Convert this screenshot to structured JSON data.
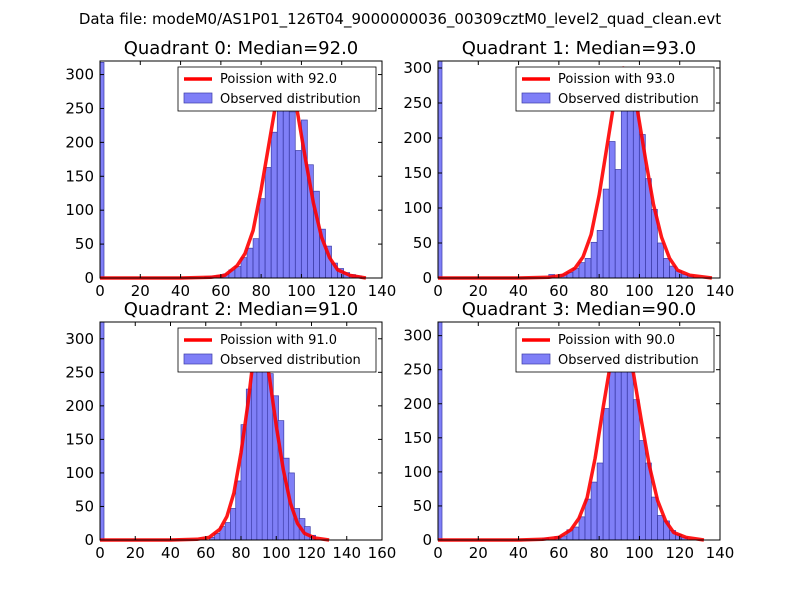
{
  "suptitle": "Data file: modeM0/AS1P01_126T04_9000000036_00309cztM0_level2_quad_clean.evt",
  "colors": {
    "bar_fill": "#7f7ff7",
    "bar_edge": "#3c3ca8",
    "curve": "#ff0000",
    "legend_edge": "#000000"
  },
  "chart_data": [
    {
      "type": "bar",
      "title": "Quadrant 0: Median=92.0",
      "median": 92.0,
      "legend": {
        "placement": "top-right",
        "curve_label": "Poission with 92.0",
        "bar_label": "Observed distribution"
      },
      "xlim": [
        0,
        140
      ],
      "ylim": [
        0,
        320
      ],
      "xticks": [
        0,
        20,
        40,
        60,
        80,
        100,
        120,
        140
      ],
      "yticks": [
        0,
        50,
        100,
        150,
        200,
        250,
        300
      ],
      "spike": {
        "x": 0,
        "value": 318
      },
      "bin_width": 2.93,
      "bins": [
        {
          "x": 52,
          "v": 2
        },
        {
          "x": 55,
          "v": 3
        },
        {
          "x": 58,
          "v": 4
        },
        {
          "x": 61,
          "v": 6
        },
        {
          "x": 64,
          "v": 12
        },
        {
          "x": 67,
          "v": 17
        },
        {
          "x": 70,
          "v": 30
        },
        {
          "x": 73,
          "v": 44
        },
        {
          "x": 76,
          "v": 58
        },
        {
          "x": 79,
          "v": 117
        },
        {
          "x": 82,
          "v": 163
        },
        {
          "x": 85,
          "v": 215
        },
        {
          "x": 88,
          "v": 255
        },
        {
          "x": 91,
          "v": 300
        },
        {
          "x": 94,
          "v": 245
        },
        {
          "x": 97,
          "v": 188
        },
        {
          "x": 100,
          "v": 233
        },
        {
          "x": 103,
          "v": 167
        },
        {
          "x": 106,
          "v": 128
        },
        {
          "x": 109,
          "v": 72
        },
        {
          "x": 112,
          "v": 47
        },
        {
          "x": 115,
          "v": 22
        },
        {
          "x": 118,
          "v": 14
        },
        {
          "x": 121,
          "v": 8
        },
        {
          "x": 124,
          "v": 5
        },
        {
          "x": 127,
          "v": 3
        }
      ],
      "curve": {
        "x": [
          0,
          40,
          55,
          62,
          68,
          72,
          76,
          80,
          84,
          88,
          91,
          94,
          98,
          102,
          106,
          110,
          114,
          118,
          124,
          132
        ],
        "y": [
          0,
          0,
          1,
          4,
          18,
          36,
          70,
          130,
          200,
          270,
          300,
          290,
          245,
          175,
          110,
          60,
          30,
          12,
          4,
          0
        ]
      }
    },
    {
      "type": "bar",
      "title": "Quadrant 1: Median=93.0",
      "median": 93.0,
      "legend": {
        "placement": "top-right",
        "curve_label": "Poission with 93.0",
        "bar_label": "Observed distribution"
      },
      "xlim": [
        0,
        140
      ],
      "ylim": [
        0,
        310
      ],
      "xticks": [
        0,
        20,
        40,
        60,
        80,
        100,
        120,
        140
      ],
      "yticks": [
        0,
        50,
        100,
        150,
        200,
        250,
        300
      ],
      "spike": {
        "x": 0,
        "value": 310
      },
      "bin_width": 2.93,
      "bins": [
        {
          "x": 55,
          "v": 5
        },
        {
          "x": 61,
          "v": 5
        },
        {
          "x": 64,
          "v": 8
        },
        {
          "x": 67,
          "v": 14
        },
        {
          "x": 70,
          "v": 22
        },
        {
          "x": 73,
          "v": 28
        },
        {
          "x": 76,
          "v": 51
        },
        {
          "x": 79,
          "v": 68
        },
        {
          "x": 82,
          "v": 127
        },
        {
          "x": 85,
          "v": 195
        },
        {
          "x": 88,
          "v": 155
        },
        {
          "x": 91,
          "v": 268
        },
        {
          "x": 94,
          "v": 300
        },
        {
          "x": 97,
          "v": 244
        },
        {
          "x": 100,
          "v": 205
        },
        {
          "x": 103,
          "v": 142
        },
        {
          "x": 106,
          "v": 98
        },
        {
          "x": 109,
          "v": 50
        },
        {
          "x": 112,
          "v": 28
        },
        {
          "x": 115,
          "v": 17
        },
        {
          "x": 118,
          "v": 10
        },
        {
          "x": 121,
          "v": 5
        },
        {
          "x": 124,
          "v": 3
        }
      ],
      "curve": {
        "x": [
          0,
          40,
          55,
          62,
          68,
          72,
          76,
          80,
          84,
          88,
          92,
          95,
          99,
          103,
          107,
          111,
          115,
          119,
          125,
          136
        ],
        "y": [
          0,
          0,
          1,
          4,
          14,
          30,
          62,
          118,
          190,
          262,
          300,
          290,
          240,
          170,
          105,
          58,
          28,
          11,
          4,
          0
        ]
      }
    },
    {
      "type": "bar",
      "title": "Quadrant 2: Median=91.0",
      "median": 91.0,
      "legend": {
        "placement": "top-right",
        "curve_label": "Poission with 91.0",
        "bar_label": "Observed distribution"
      },
      "xlim": [
        0,
        160
      ],
      "ylim": [
        0,
        325
      ],
      "xticks": [
        0,
        20,
        40,
        60,
        80,
        100,
        120,
        140,
        160
      ],
      "yticks": [
        0,
        50,
        100,
        150,
        200,
        250,
        300
      ],
      "spike": {
        "x": 0,
        "value": 325
      },
      "bin_width": 3.3,
      "bins": [
        {
          "x": 62,
          "v": 4
        },
        {
          "x": 65,
          "v": 10
        },
        {
          "x": 68,
          "v": 20
        },
        {
          "x": 71,
          "v": 26
        },
        {
          "x": 74,
          "v": 47
        },
        {
          "x": 77,
          "v": 88
        },
        {
          "x": 80,
          "v": 172
        },
        {
          "x": 83,
          "v": 225
        },
        {
          "x": 86,
          "v": 255
        },
        {
          "x": 89,
          "v": 305
        },
        {
          "x": 92,
          "v": 293
        },
        {
          "x": 95,
          "v": 248
        },
        {
          "x": 98,
          "v": 215
        },
        {
          "x": 101,
          "v": 178
        },
        {
          "x": 104,
          "v": 122
        },
        {
          "x": 107,
          "v": 100
        },
        {
          "x": 110,
          "v": 47
        },
        {
          "x": 113,
          "v": 32
        },
        {
          "x": 116,
          "v": 20
        },
        {
          "x": 119,
          "v": 7
        }
      ],
      "curve": {
        "x": [
          0,
          40,
          55,
          62,
          68,
          72,
          76,
          80,
          84,
          87,
          90,
          93,
          96,
          100,
          104,
          108,
          112,
          116,
          122,
          130
        ],
        "y": [
          0,
          0,
          1,
          4,
          16,
          35,
          70,
          130,
          205,
          270,
          308,
          290,
          245,
          170,
          105,
          55,
          25,
          10,
          3,
          0
        ]
      }
    },
    {
      "type": "bar",
      "title": "Quadrant 3: Median=90.0",
      "median": 90.0,
      "legend": {
        "placement": "top-right",
        "curve_label": "Poission with 90.0",
        "bar_label": "Observed distribution"
      },
      "xlim": [
        0,
        140
      ],
      "ylim": [
        0,
        320
      ],
      "xticks": [
        0,
        20,
        40,
        60,
        80,
        100,
        120,
        140
      ],
      "yticks": [
        0,
        50,
        100,
        150,
        200,
        250,
        300
      ],
      "spike": {
        "x": 0,
        "value": 320
      },
      "bin_width": 2.93,
      "bins": [
        {
          "x": 52,
          "v": 3
        },
        {
          "x": 58,
          "v": 5
        },
        {
          "x": 61,
          "v": 6
        },
        {
          "x": 64,
          "v": 15
        },
        {
          "x": 67,
          "v": 19
        },
        {
          "x": 70,
          "v": 34
        },
        {
          "x": 73,
          "v": 60
        },
        {
          "x": 76,
          "v": 85
        },
        {
          "x": 79,
          "v": 113
        },
        {
          "x": 82,
          "v": 193
        },
        {
          "x": 85,
          "v": 265
        },
        {
          "x": 88,
          "v": 278
        },
        {
          "x": 91,
          "v": 275
        },
        {
          "x": 94,
          "v": 247
        },
        {
          "x": 97,
          "v": 206
        },
        {
          "x": 100,
          "v": 146
        },
        {
          "x": 103,
          "v": 113
        },
        {
          "x": 106,
          "v": 63
        },
        {
          "x": 109,
          "v": 36
        },
        {
          "x": 112,
          "v": 28
        },
        {
          "x": 115,
          "v": 14
        },
        {
          "x": 118,
          "v": 8
        },
        {
          "x": 121,
          "v": 4
        }
      ],
      "curve": {
        "x": [
          0,
          40,
          52,
          60,
          66,
          70,
          74,
          78,
          82,
          86,
          90,
          93,
          97,
          101,
          105,
          109,
          113,
          117,
          123,
          132
        ],
        "y": [
          0,
          0,
          1,
          4,
          15,
          32,
          62,
          120,
          195,
          265,
          308,
          292,
          245,
          175,
          108,
          58,
          28,
          11,
          4,
          0
        ]
      }
    }
  ]
}
